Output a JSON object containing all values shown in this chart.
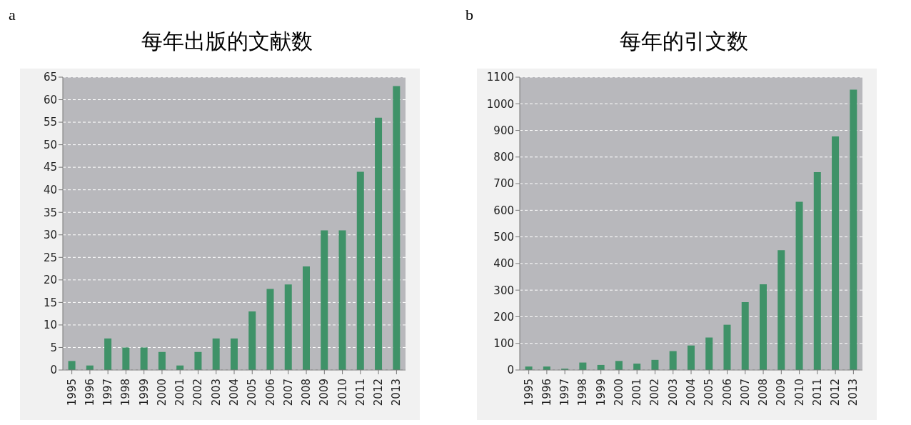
{
  "chart_data": [
    {
      "type": "bar",
      "title": "每年出版的文献数",
      "annotations": [
        "a"
      ],
      "categories": [
        "1995",
        "1996",
        "1997",
        "1998",
        "1999",
        "2000",
        "2001",
        "2002",
        "2003",
        "2004",
        "2005",
        "2006",
        "2007",
        "2008",
        "2009",
        "2010",
        "2011",
        "2012",
        "2013"
      ],
      "values": [
        2,
        1,
        7,
        5,
        5,
        4,
        1,
        4,
        7,
        7,
        13,
        18,
        19,
        23,
        31,
        31,
        44,
        56,
        63
      ],
      "color": "#3f9268",
      "ylim": [
        0,
        65
      ],
      "yticks": [
        0,
        5,
        10,
        15,
        20,
        25,
        30,
        35,
        40,
        45,
        50,
        55,
        60,
        65
      ],
      "grid": "y"
    },
    {
      "type": "bar",
      "title": "每年的引文数",
      "annotations": [
        "b"
      ],
      "categories": [
        "1995",
        "1996",
        "1997",
        "1998",
        "1999",
        "2000",
        "2001",
        "2002",
        "2003",
        "2004",
        "2005",
        "2006",
        "2007",
        "2008",
        "2009",
        "2010",
        "2011",
        "2012",
        "2013"
      ],
      "values": [
        13,
        13,
        5,
        28,
        19,
        34,
        24,
        38,
        71,
        92,
        122,
        170,
        255,
        322,
        450,
        632,
        743,
        877,
        1053
      ],
      "color": "#3f9268",
      "ylim": [
        0,
        1100
      ],
      "yticks": [
        0,
        100,
        200,
        300,
        400,
        500,
        600,
        700,
        800,
        900,
        1000,
        1100
      ],
      "grid": "y"
    }
  ]
}
